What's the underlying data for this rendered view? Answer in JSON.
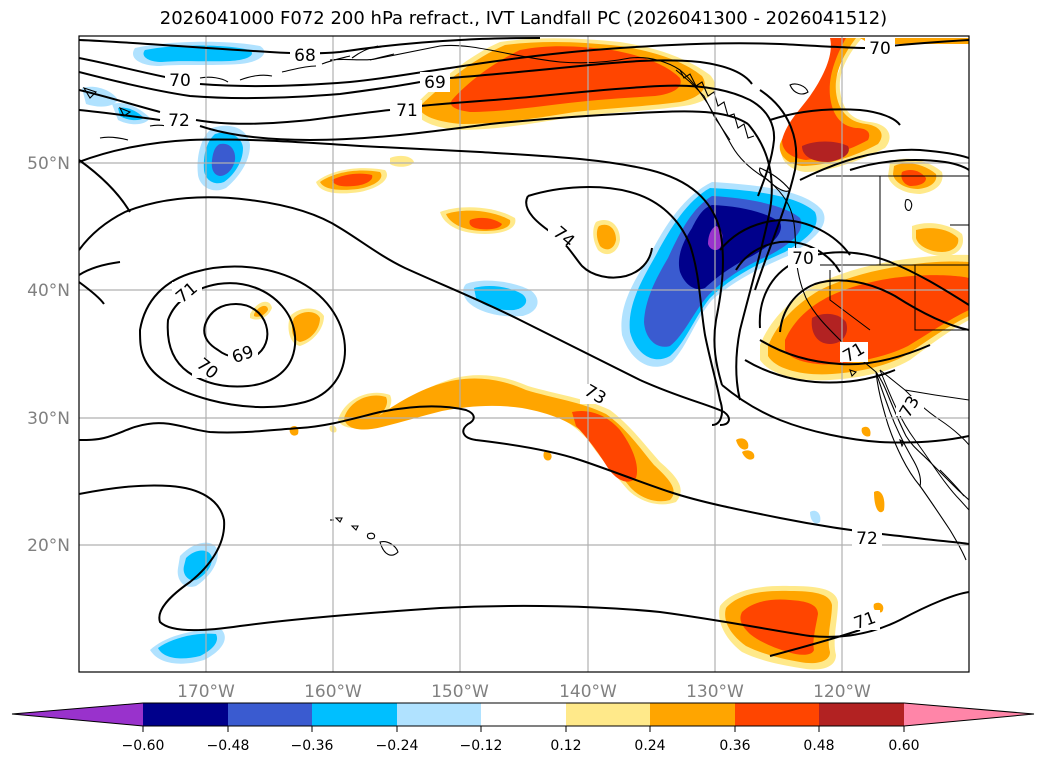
{
  "title": "2026041000 F072 200 hPa refract., IVT Landfall PC (2026041300 - 2026041512)",
  "colors": {
    "c_neg_ext": "#9932cc",
    "c_neg060": "#00008b",
    "c_neg048": "#3a5bd0",
    "c_neg036": "#00bfff",
    "c_neg024": "#b0e2ff",
    "c_neg012": "#ffffff",
    "c_pos012": "#ffe98a",
    "c_pos024": "#ffa500",
    "c_pos036": "#ff4500",
    "c_pos048": "#b22222",
    "c_pos060": "#ff85a8"
  },
  "lat_labels": [
    "50°N",
    "40°N",
    "30°N",
    "20°N"
  ],
  "lon_labels": [
    "170°W",
    "160°W",
    "150°W",
    "140°W",
    "130°W",
    "120°W"
  ],
  "colorbar": {
    "tick_labels": [
      "−0.60",
      "−0.48",
      "−0.36",
      "−0.24",
      "−0.12",
      "0.12",
      "0.24",
      "0.36",
      "0.48",
      "0.60"
    ]
  },
  "contour_labels": [
    "68",
    "70",
    "69",
    "71",
    "72",
    "70",
    "74",
    "71",
    "70",
    "69",
    "73",
    "70",
    "71",
    "73",
    "72",
    "71"
  ]
}
